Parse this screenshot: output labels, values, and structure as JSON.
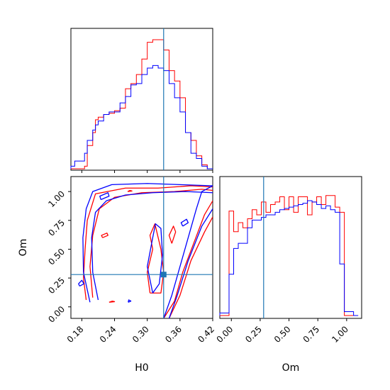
{
  "chart_data": {
    "type": "corner",
    "parameters": [
      "H0",
      "Om"
    ],
    "truth": {
      "H0": 0.33,
      "Om": 0.28
    },
    "colors": {
      "series_a": "#ff0000",
      "series_b": "#0000ff",
      "truth": "#1f77b4"
    },
    "H0_axis": {
      "label": "H0",
      "xlim": [
        0.16,
        0.42
      ],
      "ticks": [
        0.18,
        0.24,
        0.3,
        0.36,
        0.42
      ],
      "tick_labels": [
        "0.18",
        "0.24",
        "0.30",
        "0.36",
        "0.42"
      ]
    },
    "Om_axis": {
      "label": "Om",
      "lim": [
        -0.1,
        1.13
      ],
      "ticks": [
        0.0,
        0.25,
        0.5,
        0.75,
        1.0
      ],
      "tick_labels": [
        "0.00",
        "0.25",
        "0.50",
        "0.75",
        "1.00"
      ]
    },
    "H0_hist": {
      "bin_edges": [
        0.16,
        0.167,
        0.175,
        0.185,
        0.19,
        0.2,
        0.205,
        0.21,
        0.22,
        0.23,
        0.24,
        0.25,
        0.26,
        0.27,
        0.28,
        0.29,
        0.3,
        0.31,
        0.32,
        0.33,
        0.34,
        0.35,
        0.36,
        0.37,
        0.38,
        0.39,
        0.4,
        0.41,
        0.42
      ],
      "red": [
        0,
        0,
        0,
        0.02,
        0.18,
        0.28,
        0.38,
        0.4,
        0.42,
        0.43,
        0.45,
        0.47,
        0.62,
        0.66,
        0.73,
        0.85,
        0.98,
        1.0,
        1.0,
        0.92,
        0.76,
        0.68,
        0.55,
        0.28,
        0.22,
        0.1,
        0.03,
        0.0
      ],
      "blue": [
        0.02,
        0.06,
        0.06,
        0.12,
        0.22,
        0.3,
        0.34,
        0.37,
        0.42,
        0.44,
        0.44,
        0.51,
        0.56,
        0.65,
        0.66,
        0.73,
        0.78,
        0.8,
        0.78,
        0.76,
        0.66,
        0.55,
        0.44,
        0.28,
        0.12,
        0.08,
        0.02,
        0.0
      ]
    },
    "Om_hist": {
      "bin_edges": [
        -0.1,
        -0.06,
        -0.02,
        0.02,
        0.06,
        0.1,
        0.14,
        0.18,
        0.22,
        0.26,
        0.3,
        0.34,
        0.38,
        0.42,
        0.46,
        0.5,
        0.54,
        0.58,
        0.62,
        0.66,
        0.7,
        0.74,
        0.78,
        0.82,
        0.86,
        0.9,
        0.94,
        0.98,
        1.02,
        1.06,
        1.1
      ],
      "red": [
        0,
        0,
        0.81,
        0.65,
        0.72,
        0.68,
        0.75,
        0.82,
        0.78,
        0.88,
        0.8,
        0.86,
        0.88,
        0.92,
        0.82,
        0.92,
        0.8,
        0.92,
        0.92,
        0.78,
        0.88,
        0.92,
        0.86,
        0.93,
        0.93,
        0.84,
        0.8,
        0,
        0,
        0
      ],
      "blue": [
        0.02,
        0.02,
        0.32,
        0.52,
        0.56,
        0.56,
        0.68,
        0.74,
        0.74,
        0.76,
        0.78,
        0.78,
        0.8,
        0.82,
        0.83,
        0.84,
        0.85,
        0.86,
        0.87,
        0.89,
        0.88,
        0.86,
        0.83,
        0.85,
        0.82,
        0.8,
        0.4,
        0.03,
        0.03,
        0.0
      ]
    },
    "contours": {
      "red": [
        [
          [
            0.188,
            0.06
          ],
          [
            0.183,
            0.25
          ],
          [
            0.186,
            0.5
          ],
          [
            0.19,
            0.75
          ],
          [
            0.205,
            0.98
          ],
          [
            0.26,
            1.03
          ],
          [
            0.32,
            1.03
          ],
          [
            0.38,
            1.05
          ],
          [
            0.42,
            1.04
          ]
        ],
        [
          [
            0.2,
            0.08
          ],
          [
            0.195,
            0.35
          ],
          [
            0.2,
            0.62
          ],
          [
            0.212,
            0.85
          ],
          [
            0.24,
            0.95
          ],
          [
            0.29,
            0.99
          ],
          [
            0.35,
            1.0
          ],
          [
            0.4,
            1.02
          ],
          [
            0.42,
            1.01
          ]
        ],
        [
          [
            0.33,
            -0.1
          ],
          [
            0.35,
            0.05
          ],
          [
            0.365,
            0.3
          ],
          [
            0.385,
            0.55
          ],
          [
            0.405,
            0.8
          ],
          [
            0.42,
            0.92
          ]
        ],
        [
          [
            0.34,
            -0.1
          ],
          [
            0.36,
            0.1
          ],
          [
            0.38,
            0.4
          ],
          [
            0.405,
            0.65
          ],
          [
            0.42,
            0.78
          ]
        ],
        [
          [
            0.305,
            0.12
          ],
          [
            0.3,
            0.3
          ],
          [
            0.31,
            0.5
          ],
          [
            0.305,
            0.62
          ],
          [
            0.314,
            0.72
          ],
          [
            0.325,
            0.5
          ],
          [
            0.33,
            0.3
          ],
          [
            0.325,
            0.12
          ],
          [
            0.305,
            0.12
          ]
        ],
        [
          [
            0.345,
            0.55
          ],
          [
            0.352,
            0.65
          ],
          [
            0.348,
            0.7
          ],
          [
            0.34,
            0.62
          ],
          [
            0.345,
            0.55
          ]
        ],
        [
          [
            0.218,
            0.6
          ],
          [
            0.228,
            0.62
          ],
          [
            0.226,
            0.64
          ],
          [
            0.216,
            0.62
          ],
          [
            0.218,
            0.6
          ]
        ],
        [
          [
            0.23,
            0.04
          ],
          [
            0.24,
            0.045
          ],
          [
            0.236,
            0.05
          ],
          [
            0.23,
            0.04
          ]
        ],
        [
          [
            0.264,
            1.0
          ],
          [
            0.272,
            1.005
          ],
          [
            0.268,
            1.01
          ],
          [
            0.264,
            1.0
          ]
        ]
      ],
      "blue": [
        [
          [
            0.195,
            0.04
          ],
          [
            0.183,
            0.3
          ],
          [
            0.182,
            0.6
          ],
          [
            0.188,
            0.85
          ],
          [
            0.2,
            1.0
          ],
          [
            0.235,
            1.06
          ],
          [
            0.3,
            1.07
          ],
          [
            0.36,
            1.06
          ],
          [
            0.42,
            1.05
          ]
        ],
        [
          [
            0.21,
            0.06
          ],
          [
            0.2,
            0.3
          ],
          [
            0.198,
            0.6
          ],
          [
            0.205,
            0.82
          ],
          [
            0.225,
            0.92
          ],
          [
            0.26,
            0.97
          ],
          [
            0.31,
            0.99
          ],
          [
            0.37,
            1.0
          ],
          [
            0.42,
            0.99
          ]
        ],
        [
          [
            0.33,
            -0.1
          ],
          [
            0.345,
            0.1
          ],
          [
            0.36,
            0.35
          ],
          [
            0.375,
            0.6
          ],
          [
            0.39,
            0.85
          ],
          [
            0.4,
            1.0
          ],
          [
            0.42,
            1.05
          ]
        ],
        [
          [
            0.34,
            -0.1
          ],
          [
            0.355,
            0.1
          ],
          [
            0.375,
            0.4
          ],
          [
            0.4,
            0.7
          ],
          [
            0.42,
            0.85
          ]
        ],
        [
          [
            0.31,
            0.12
          ],
          [
            0.3,
            0.35
          ],
          [
            0.31,
            0.6
          ],
          [
            0.315,
            0.72
          ],
          [
            0.325,
            0.68
          ],
          [
            0.328,
            0.45
          ],
          [
            0.322,
            0.2
          ],
          [
            0.31,
            0.12
          ]
        ],
        [
          [
            0.365,
            0.7
          ],
          [
            0.375,
            0.73
          ],
          [
            0.372,
            0.76
          ],
          [
            0.362,
            0.73
          ],
          [
            0.365,
            0.7
          ]
        ],
        [
          [
            0.176,
            0.18
          ],
          [
            0.184,
            0.2
          ],
          [
            0.18,
            0.23
          ],
          [
            0.174,
            0.2
          ],
          [
            0.176,
            0.18
          ]
        ],
        [
          [
            0.215,
            0.93
          ],
          [
            0.23,
            0.96
          ],
          [
            0.228,
            0.99
          ],
          [
            0.213,
            0.96
          ],
          [
            0.215,
            0.93
          ]
        ],
        [
          [
            0.265,
            0.04
          ],
          [
            0.27,
            0.05
          ],
          [
            0.266,
            0.06
          ],
          [
            0.265,
            0.04
          ]
        ]
      ]
    }
  }
}
